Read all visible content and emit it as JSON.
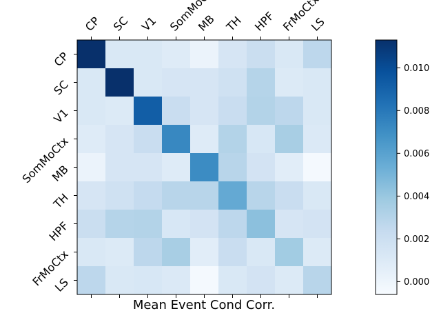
{
  "chart_data": {
    "type": "heatmap",
    "xlabel": "Mean Event Cond Corr.",
    "x_categories": [
      "CP",
      "SC",
      "V1",
      "SomMoCtx",
      "MB",
      "TH",
      "HPF",
      "FrMoCtx",
      "LS"
    ],
    "y_categories": [
      "CP",
      "SC",
      "V1",
      "SomMoCtx",
      "MB",
      "TH",
      "HPF",
      "FrMoCtx",
      "LS"
    ],
    "values": [
      [
        0.0113,
        0.0012,
        0.0012,
        0.0009,
        0.0001,
        0.0014,
        0.0021,
        0.0012,
        0.0027
      ],
      [
        0.0012,
        0.0113,
        0.0012,
        0.0014,
        0.0014,
        0.0018,
        0.003,
        0.001,
        0.0012
      ],
      [
        0.0012,
        0.001,
        0.0092,
        0.0022,
        0.0014,
        0.0022,
        0.0031,
        0.0027,
        0.0012
      ],
      [
        0.0009,
        0.0014,
        0.0022,
        0.0073,
        0.0009,
        0.0031,
        0.0013,
        0.0035,
        0.0011
      ],
      [
        0.0001,
        0.0014,
        0.0014,
        0.0009,
        0.0071,
        0.0029,
        0.0016,
        0.0007,
        -0.0004
      ],
      [
        0.0014,
        0.0018,
        0.0024,
        0.0029,
        0.0029,
        0.0056,
        0.0029,
        0.0022,
        0.0012
      ],
      [
        0.0021,
        0.003,
        0.0031,
        0.0013,
        0.0016,
        0.0027,
        0.0044,
        0.0014,
        0.0016
      ],
      [
        0.0012,
        0.001,
        0.0027,
        0.0035,
        0.0007,
        0.0022,
        0.0012,
        0.0037,
        0.001
      ],
      [
        0.0027,
        0.0012,
        0.0013,
        0.0011,
        -0.0004,
        0.0012,
        0.0016,
        0.001,
        0.0029
      ]
    ],
    "colormap": "Blues",
    "vmin": -0.0006,
    "vmax": 0.0113,
    "colorbar": {
      "ticks": [
        0.0,
        0.002,
        0.004,
        0.006,
        0.008,
        0.01
      ],
      "tick_labels": [
        "0.000",
        "0.002",
        "0.004",
        "0.006",
        "0.008",
        "0.010"
      ]
    },
    "grid": false,
    "legend": "colorbar-right"
  }
}
